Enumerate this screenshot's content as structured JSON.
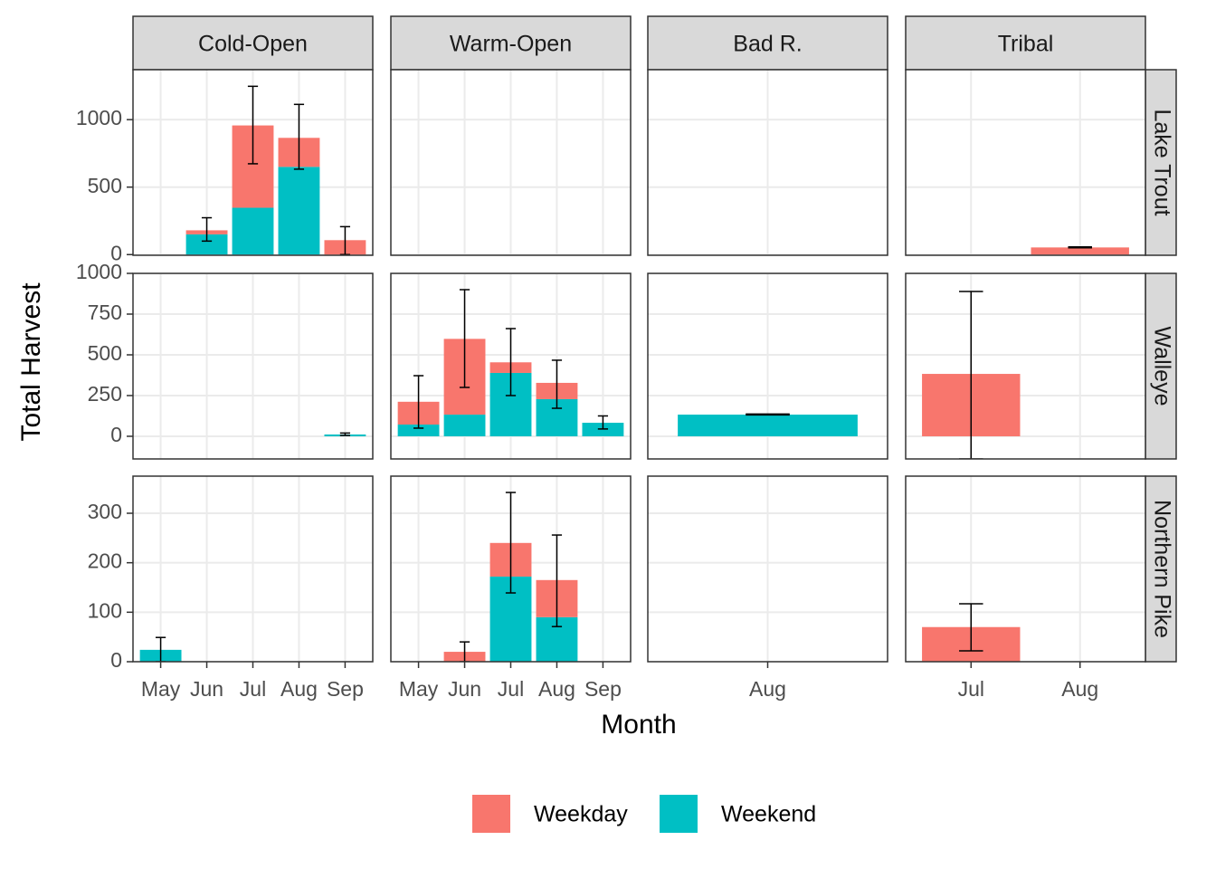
{
  "chart_data": {
    "type": "bar",
    "stacked": true,
    "xlabel": "Month",
    "ylabel": "Total Harvest",
    "grid": true,
    "legend_position": "bottom",
    "legend": [
      {
        "name": "Weekday",
        "color": "#F8766D"
      },
      {
        "name": "Weekend",
        "color": "#00BFC4"
      }
    ],
    "columns": [
      {
        "label": "Cold-Open",
        "categories": [
          "May",
          "Jun",
          "Jul",
          "Aug",
          "Sep"
        ]
      },
      {
        "label": "Warm-Open",
        "categories": [
          "May",
          "Jun",
          "Jul",
          "Aug",
          "Sep"
        ]
      },
      {
        "label": "Bad R.",
        "categories": [
          "Aug"
        ]
      },
      {
        "label": "Tribal",
        "categories": [
          "Jul",
          "Aug"
        ]
      }
    ],
    "rows": [
      {
        "label": "Lake Trout",
        "ylim": [
          -5,
          1370
        ],
        "yticks": [
          0,
          500,
          1000
        ]
      },
      {
        "label": "Walleye",
        "ylim": [
          -139,
          1000
        ],
        "yticks": [
          0,
          250,
          500,
          750,
          1000
        ]
      },
      {
        "label": "Northern Pike",
        "ylim": [
          0,
          375
        ],
        "yticks": [
          0,
          100,
          200,
          300
        ]
      }
    ],
    "panels": [
      {
        "series": [
          {
            "values": [
              null,
              30,
              610,
              215,
              107
            ]
          },
          {
            "values": [
              null,
              150,
              347,
              650,
              null
            ]
          }
        ],
        "error_low": [
          null,
          100,
          673,
          633,
          0
        ],
        "error_high": [
          null,
          273,
          1247,
          1113,
          207
        ]
      },
      {
        "series": [
          {
            "values": [
              null,
              null,
              null,
              null,
              null
            ]
          },
          {
            "values": [
              null,
              null,
              null,
              null,
              null
            ]
          }
        ],
        "error_low": [
          null,
          null,
          null,
          null,
          null
        ],
        "error_high": [
          null,
          null,
          null,
          null,
          null
        ]
      },
      {
        "series": [
          {
            "values": [
              null
            ]
          },
          {
            "values": [
              null
            ]
          }
        ],
        "error_low": [
          null
        ],
        "error_high": [
          null
        ]
      },
      {
        "series": [
          {
            "values": [
              null,
              53
            ]
          },
          {
            "values": [
              null,
              null
            ]
          }
        ],
        "error_low": [
          null,
          50
        ],
        "error_high": [
          null,
          57
        ]
      },
      {
        "series": [
          {
            "values": [
              null,
              null,
              null,
              null,
              null
            ]
          },
          {
            "values": [
              null,
              null,
              null,
              null,
              11
            ]
          }
        ],
        "error_low": [
          null,
          null,
          null,
          null,
          5
        ],
        "error_high": [
          null,
          null,
          null,
          null,
          20
        ]
      },
      {
        "series": [
          {
            "values": [
              140,
              465,
              65,
              100,
              null
            ]
          },
          {
            "values": [
              72,
              133,
              389,
              228,
              83
            ]
          }
        ],
        "error_low": [
          50,
          300,
          250,
          172,
          45
        ],
        "error_high": [
          372,
          900,
          661,
          467,
          125
        ]
      },
      {
        "series": [
          {
            "values": [
              null
            ]
          },
          {
            "values": [
              133
            ]
          }
        ],
        "error_low": [
          131
        ],
        "error_high": [
          137
        ]
      },
      {
        "series": [
          {
            "values": [
              383,
              null
            ]
          },
          {
            "values": [
              null,
              null
            ]
          }
        ],
        "error_low": [
          -139,
          null
        ],
        "error_high": [
          889,
          null
        ]
      },
      {
        "series": [
          {
            "values": [
              null,
              null,
              null,
              null,
              null
            ]
          },
          {
            "values": [
              24,
              null,
              null,
              null,
              null
            ]
          }
        ],
        "error_low": [
          0,
          null,
          null,
          null,
          null
        ],
        "error_high": [
          49,
          null,
          null,
          null,
          null
        ]
      },
      {
        "series": [
          {
            "values": [
              null,
              20,
              68,
              75,
              null
            ]
          },
          {
            "values": [
              null,
              null,
              172,
              90,
              null
            ]
          }
        ],
        "error_low": [
          null,
          0,
          139,
          71,
          null
        ],
        "error_high": [
          null,
          40,
          342,
          256,
          null
        ]
      },
      {
        "series": [
          {
            "values": [
              null
            ]
          },
          {
            "values": [
              null
            ]
          }
        ],
        "error_low": [
          null
        ],
        "error_high": [
          null
        ]
      },
      {
        "series": [
          {
            "values": [
              70,
              null
            ]
          },
          {
            "values": [
              null,
              null
            ]
          }
        ],
        "error_low": [
          22,
          null
        ],
        "error_high": [
          117,
          null
        ]
      }
    ]
  }
}
